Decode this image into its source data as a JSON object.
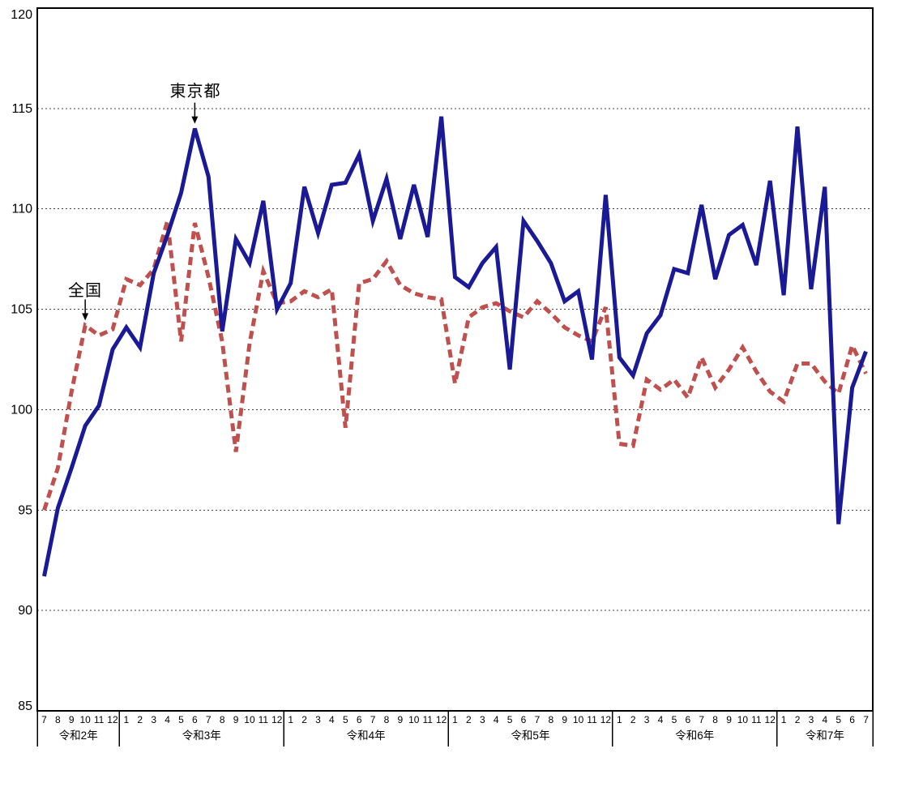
{
  "chart_data": {
    "type": "line",
    "ylim": [
      85,
      120
    ],
    "yticks": [
      85,
      90,
      95,
      100,
      105,
      110,
      115,
      120
    ],
    "grid": "horizontal-dotted",
    "x_axis": {
      "years": [
        {
          "label": "令和2年",
          "months": [
            7,
            8,
            9,
            10,
            11,
            12
          ]
        },
        {
          "label": "令和3年",
          "months": [
            1,
            2,
            3,
            4,
            5,
            6,
            7,
            8,
            9,
            10,
            11,
            12
          ]
        },
        {
          "label": "令和4年",
          "months": [
            1,
            2,
            3,
            4,
            5,
            6,
            7,
            8,
            9,
            10,
            11,
            12
          ]
        },
        {
          "label": "令和5年",
          "months": [
            1,
            2,
            3,
            4,
            5,
            6,
            7,
            8,
            9,
            10,
            11,
            12
          ]
        },
        {
          "label": "令和6年",
          "months": [
            1,
            2,
            3,
            4,
            5,
            6,
            7,
            8,
            9,
            10,
            11,
            12
          ]
        },
        {
          "label": "令和7年",
          "months": [
            1,
            2,
            3,
            4,
            5,
            6,
            7
          ]
        }
      ]
    },
    "series": [
      {
        "name": "全国",
        "color": "#c0504d",
        "style": "dashed",
        "values": [
          95.0,
          97.1,
          100.9,
          104.2,
          103.7,
          104.0,
          106.5,
          106.2,
          107.0,
          109.4,
          103.4,
          109.3,
          106.6,
          103.4,
          97.9,
          103.3,
          106.9,
          105.3,
          105.4,
          105.9,
          105.6,
          106.0,
          99.1,
          106.3,
          106.5,
          107.4,
          106.2,
          105.8,
          105.6,
          105.5,
          101.3,
          104.6,
          105.1,
          105.3,
          104.9,
          104.6,
          105.4,
          104.8,
          104.1,
          103.7,
          103.4,
          105.1,
          98.3,
          98.2,
          101.5,
          101.0,
          101.5,
          100.6,
          102.6,
          101.1,
          102.0,
          103.1,
          101.9,
          100.9,
          100.4,
          102.3,
          102.3,
          101.4,
          100.8,
          103.2,
          101.8
        ]
      },
      {
        "name": "東京都",
        "color": "#1a1a96",
        "style": "solid",
        "values": [
          91.7,
          95.1,
          97.1,
          99.2,
          100.2,
          103.0,
          104.1,
          103.1,
          106.8,
          108.7,
          110.8,
          114.0,
          111.6,
          103.9,
          108.5,
          107.3,
          110.4,
          105.0,
          106.3,
          111.1,
          108.8,
          111.2,
          111.3,
          112.7,
          109.4,
          111.5,
          108.5,
          111.2,
          108.6,
          114.6,
          106.6,
          106.1,
          107.3,
          108.1,
          102.0,
          109.4,
          108.4,
          107.3,
          105.4,
          105.9,
          102.5,
          110.7,
          102.6,
          101.7,
          103.8,
          104.7,
          107.0,
          106.8,
          110.2,
          106.5,
          108.7,
          109.2,
          107.2,
          111.4,
          105.7,
          114.1,
          106.0,
          111.1,
          94.3,
          101.1,
          102.9
        ]
      }
    ],
    "annotations": [
      {
        "text": "東京都",
        "month_index": 11,
        "series_index": 1
      },
      {
        "text": "全国",
        "month_index": 3,
        "series_index": 0
      }
    ]
  }
}
